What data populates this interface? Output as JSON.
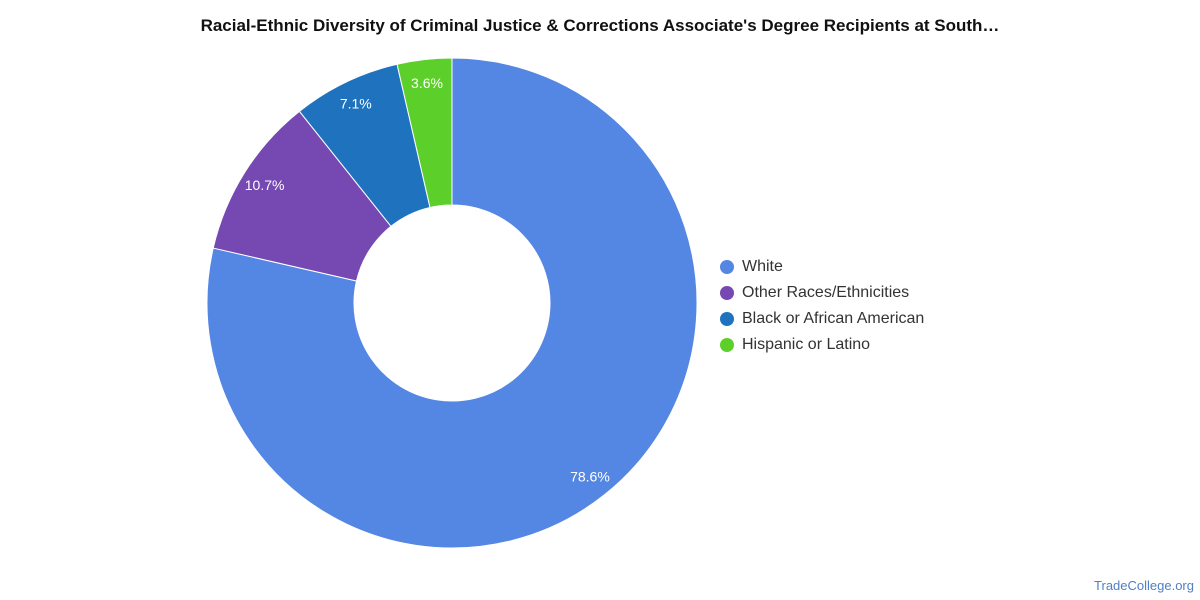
{
  "chart_data": {
    "type": "pie",
    "title": "Racial-Ethnic Diversity of Criminal Justice & Corrections Associate's Degree Recipients at South…",
    "donut": true,
    "legend_position": "right",
    "slices": [
      {
        "name": "White",
        "value": 78.6,
        "label": "78.6%",
        "color": "#5486e3"
      },
      {
        "name": "Other Races/Ethnicities",
        "value": 10.7,
        "label": "10.7%",
        "color": "#7548b2"
      },
      {
        "name": "Black or African American",
        "value": 7.1,
        "label": "7.1%",
        "color": "#1f73be"
      },
      {
        "name": "Hispanic or Latino",
        "value": 3.6,
        "label": "3.6%",
        "color": "#5dcf2b"
      }
    ]
  },
  "watermark": "TradeCollege.org"
}
